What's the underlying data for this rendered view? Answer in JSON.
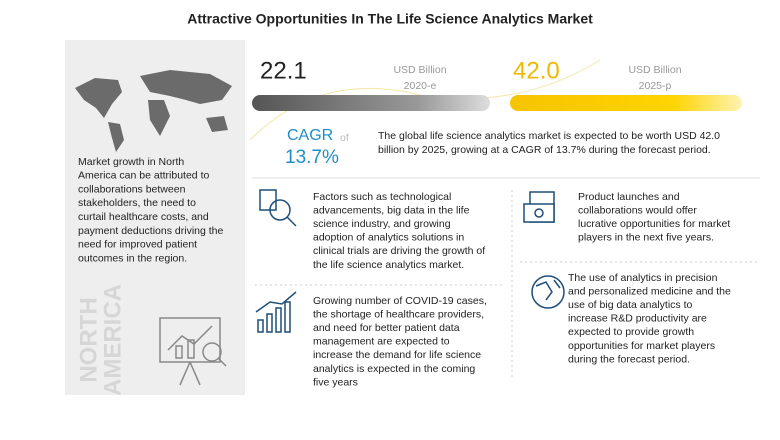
{
  "title": "Attractive Opportunities In The Life Science Analytics Market",
  "left_panel": {
    "lines": [
      "Market growth in North",
      "America can be attributed to",
      "collaborations between",
      "stakeholders, the need to",
      "curtail healthcare costs, and",
      "payment deductions driving the",
      "need for improved patient",
      "outcomes in the region."
    ],
    "region": [
      "NORTH",
      "AMERICA"
    ]
  },
  "market": {
    "start": {
      "value": "22.1",
      "unit": "USD Billion",
      "year": "2020-e"
    },
    "end": {
      "value": "42.0",
      "unit": "USD Billion",
      "year": "2025-p"
    },
    "cagr": {
      "label": "CAGR",
      "of": "of",
      "value": "13.7%"
    },
    "summary": [
      "The global life science analytics market is expected to be worth USD 42.0",
      "billion by 2025, growing at a CAGR of 13.7% during the forecast period."
    ]
  },
  "blocks": [
    {
      "lines": [
        "Factors such as technological",
        "advancements, big data in the life",
        "science industry, and growing",
        "adoption of analytics solutions in",
        "clinical trials are driving the growth of",
        "the life science analytics market."
      ]
    },
    {
      "lines": [
        "Growing number of COVID-19 cases,",
        "the shortage of healthcare providers,",
        "and need for better patient data",
        "management are expected to",
        "increase the demand for life science",
        "analytics is expected in the coming",
        "five years"
      ]
    },
    {
      "lines": [
        "Product launches and",
        "collaborations would offer",
        "lucrative opportunities for market",
        "players in the next five years."
      ]
    },
    {
      "lines": [
        "The use of analytics in precision",
        "and personalized medicine and the",
        "use of big data analytics to",
        "increase R&D productivity are",
        "expected to provide growth",
        "opportunities for market players",
        "during the forecast period."
      ]
    }
  ]
}
